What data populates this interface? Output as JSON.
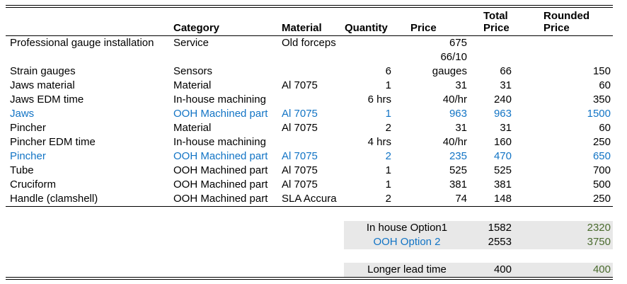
{
  "table": {
    "headers": {
      "item": "",
      "category": "Category",
      "material": "Material",
      "quantity": "Quantity",
      "price": "Price",
      "total_price": "Total Price",
      "rounded_price": "Rounded Price"
    },
    "rows": [
      {
        "item": "Professional gauge installation",
        "category": "Service",
        "material": "Old forceps",
        "quantity": "",
        "price": "675",
        "total": "",
        "rounded": "",
        "highlight": false
      },
      {
        "item": "",
        "category": "",
        "material": "",
        "quantity": "",
        "price": "66/10",
        "total": "",
        "rounded": "",
        "highlight": false
      },
      {
        "item": "Strain gauges",
        "category": "Sensors",
        "material": "",
        "quantity": "6",
        "price": "gauges",
        "total": "66",
        "rounded": "150",
        "highlight": false
      },
      {
        "item": "Jaws material",
        "category": "Material",
        "material": "Al 7075",
        "quantity": "1",
        "price": "31",
        "total": "31",
        "rounded": "60",
        "highlight": false
      },
      {
        "item": "Jaws EDM time",
        "category": "In-house machining",
        "material": "",
        "quantity": "6 hrs",
        "price": "40/hr",
        "total": "240",
        "rounded": "350",
        "highlight": false
      },
      {
        "item": "Jaws",
        "category": "OOH Machined part",
        "material": "Al 7075",
        "quantity": "1",
        "price": "963",
        "total": "963",
        "rounded": "1500",
        "highlight": true
      },
      {
        "item": "Pincher",
        "category": "Material",
        "material": "Al 7075",
        "quantity": "2",
        "price": "31",
        "total": "31",
        "rounded": "60",
        "highlight": false
      },
      {
        "item": "Pincher EDM time",
        "category": "In-house machining",
        "material": "",
        "quantity": "4 hrs",
        "price": "40/hr",
        "total": "160",
        "rounded": "250",
        "highlight": false
      },
      {
        "item": "Pincher",
        "category": "OOH Machined part",
        "material": "Al 7075",
        "quantity": "2",
        "price": "235",
        "total": "470",
        "rounded": "650",
        "highlight": true
      },
      {
        "item": "Tube",
        "category": "OOH Machined part",
        "material": "Al 7075",
        "quantity": "1",
        "price": "525",
        "total": "525",
        "rounded": "700",
        "highlight": false
      },
      {
        "item": "Cruciform",
        "category": "OOH Machined part",
        "material": "Al 7075",
        "quantity": "1",
        "price": "381",
        "total": "381",
        "rounded": "500",
        "highlight": false
      },
      {
        "item": "Handle (clamshell)",
        "category": "OOH Machined part",
        "material": "SLA Accura",
        "quantity": "2",
        "price": "74",
        "total": "148",
        "rounded": "250",
        "highlight": false
      }
    ],
    "summary": {
      "options": [
        {
          "label": "In house Option1",
          "total": "1582",
          "rounded": "2320",
          "highlight": false
        },
        {
          "label": "OOH Option 2",
          "total": "2553",
          "rounded": "3750",
          "highlight": true
        }
      ],
      "lead_time": {
        "label": "Longer lead time",
        "total": "400",
        "rounded": "400"
      }
    }
  },
  "colors": {
    "accent_blue": "#1274c5",
    "accent_green": "#4a6b2e",
    "summary_bg": "#e8e8e8",
    "border": "#000000"
  }
}
